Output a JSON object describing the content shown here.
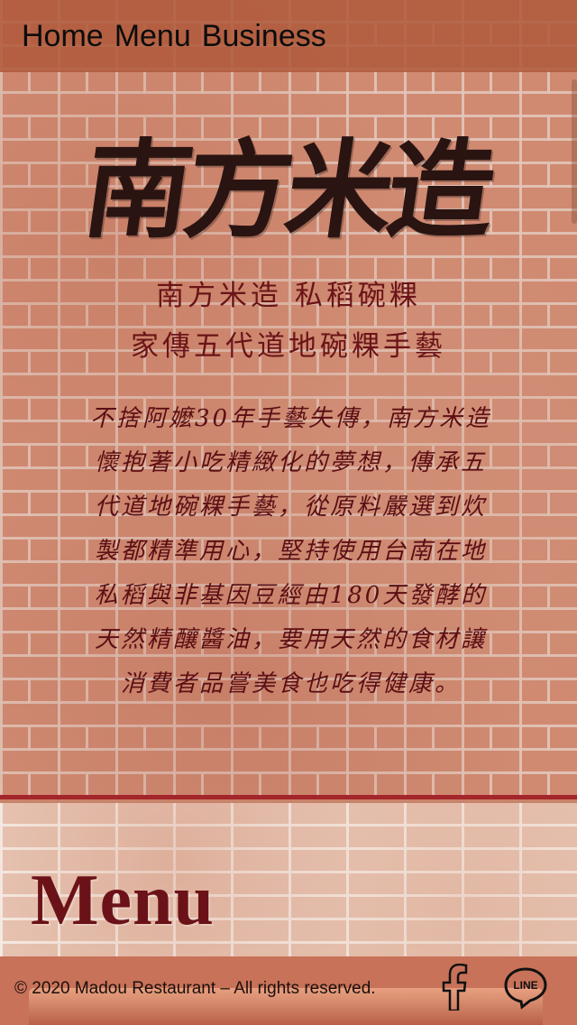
{
  "nav": {
    "home": "Home",
    "menu": "Menu",
    "business": "Business"
  },
  "logo": {
    "text": "南方米造"
  },
  "headline": {
    "line1": "南方米造 私稻碗粿",
    "line2": "家傳五代道地碗粿手藝"
  },
  "intro": {
    "text": "不捨阿嬤30年手藝失傳，南方米造懷抱著小吃精緻化的夢想，傳承五代道地碗粿手藝，從原料嚴選到炊製都精準用心，堅持使用台南在地私稻與非基因豆經由180天發酵的天然精釀醬油，要用天然的食材讓消費者品嘗美食也吃得健康。"
  },
  "section": {
    "menu_heading": "Menu"
  },
  "footer": {
    "copyright": "© 2020 Madou Restaurant – All rights reserved."
  },
  "icons": {
    "facebook": "facebook-icon",
    "line": "line-icon"
  },
  "colors": {
    "accent": "#6b1219",
    "rule": "#a3262a"
  }
}
